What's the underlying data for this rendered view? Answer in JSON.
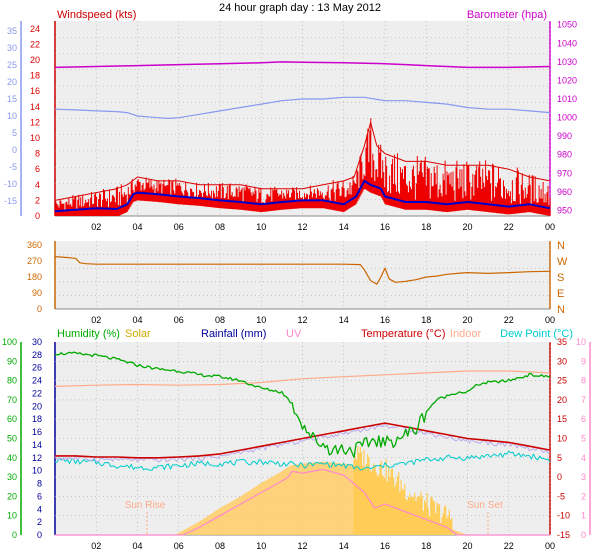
{
  "page": {
    "title": "24 hour graph day : 13 May 2012"
  },
  "colors": {
    "windspeed": "#dd0000",
    "gust": "#ee0000",
    "wind_avg": "#0000cc",
    "barometer": "#cc00cc",
    "wind_left_axis": "#8899ee",
    "direction": "#cc6600",
    "humidity": "#00aa00",
    "solar": "#ccaa00",
    "solar_fill": "#ffcc66",
    "rainfall": "#000099",
    "uv": "#ff88cc",
    "temperature": "#cc0000",
    "indoor": "#ffaa88",
    "dewpoint": "#00cccc",
    "panel_bg": "#eeeeee"
  },
  "chart_data": [
    {
      "type": "line",
      "panel": "wind-barometer",
      "legend": {
        "left": "Windspeed (kts)",
        "right": "Barometer (hpa)"
      },
      "x_ticks": [
        "02",
        "04",
        "06",
        "08",
        "10",
        "12",
        "14",
        "16",
        "18",
        "20",
        "22",
        "00"
      ],
      "x_range": [
        0,
        24
      ],
      "left_axis_outer_ticks": [
        "35",
        "30",
        "25",
        "20",
        "15",
        "10",
        "5",
        "0",
        "-5",
        "-10",
        "-15"
      ],
      "left_axis_ticks": [
        "24",
        "22",
        "20",
        "18",
        "16",
        "14",
        "12",
        "10",
        "8",
        "6",
        "4",
        "2",
        "0"
      ],
      "right_axis_ticks": [
        "1050",
        "1040",
        "1030",
        "1020",
        "1010",
        "1000",
        "990",
        "980",
        "970",
        "960",
        "950"
      ],
      "ylim_left": [
        0,
        25
      ],
      "ylim_right": [
        947,
        1052
      ],
      "series": [
        {
          "name": "Barometer",
          "axis": "right",
          "x": [
            0,
            2,
            4,
            6,
            8,
            10,
            11,
            12,
            14,
            16,
            17,
            18,
            19,
            20,
            22,
            24
          ],
          "y": [
            1027,
            1027.5,
            1028,
            1028.5,
            1029,
            1029.5,
            1030,
            1029.8,
            1029.5,
            1029,
            1028.5,
            1028,
            1027.5,
            1027,
            1027,
            1027.5
          ]
        },
        {
          "name": "",
          "axis": "left-outer",
          "x": [
            0,
            1,
            2,
            3,
            3.5,
            4,
            5,
            5.5,
            6,
            7,
            8,
            9,
            10,
            11,
            12,
            13,
            14,
            15,
            16,
            17,
            18,
            19,
            20,
            21,
            22,
            23,
            24
          ],
          "y": [
            12,
            11.8,
            11.5,
            11.3,
            11,
            10,
            9.5,
            9.3,
            9.5,
            10.5,
            11.5,
            12.5,
            13.5,
            14.5,
            15,
            15,
            15.5,
            15.5,
            14.5,
            14.5,
            14,
            13.5,
            12.5,
            12,
            12,
            11.5,
            11
          ]
        },
        {
          "name": "Windspeed",
          "axis": "left",
          "x": [
            0,
            1,
            2,
            3,
            3.5,
            4,
            5,
            6,
            7,
            8,
            9,
            10,
            11,
            12,
            13,
            14,
            14.5,
            15,
            15.3,
            15.6,
            16,
            17,
            18,
            19,
            20,
            21,
            22,
            23,
            24
          ],
          "y": [
            2,
            2.5,
            3,
            3.5,
            4,
            5,
            4.5,
            4.5,
            4,
            4,
            4,
            3.5,
            3.5,
            3.5,
            4,
            4.5,
            5,
            9,
            12,
            9,
            8,
            7,
            7,
            6.5,
            6.5,
            6.5,
            6,
            5,
            4.5
          ]
        },
        {
          "name": "",
          "axis": "left",
          "x": [
            0,
            1,
            2,
            3,
            3.5,
            3.8,
            4,
            5,
            6,
            7,
            8,
            9,
            10,
            11,
            12,
            13,
            14,
            14.6,
            15,
            15.3,
            15.8,
            16,
            17,
            18,
            19,
            20,
            21,
            22,
            23,
            24
          ],
          "y": [
            0.6,
            0.8,
            1,
            0.9,
            1.5,
            2.8,
            3,
            2.8,
            2.5,
            2.3,
            2,
            1.8,
            1.5,
            1.8,
            2,
            2,
            1.5,
            2.5,
            4.5,
            4,
            3.5,
            2.5,
            1.8,
            1.8,
            1.5,
            1.8,
            1.5,
            1.2,
            1.5,
            1
          ]
        }
      ]
    },
    {
      "type": "line",
      "panel": "wind-direction",
      "left_axis_ticks": [
        "360",
        "270",
        "180",
        "90",
        "0"
      ],
      "right_axis_ticks": [
        "N",
        "W",
        "S",
        "E",
        "N"
      ],
      "ylim": [
        0,
        360
      ],
      "series": [
        {
          "name": "",
          "x": [
            0,
            0.5,
            1,
            1.2,
            1.5,
            2,
            4,
            6,
            8,
            10,
            12,
            14,
            14.8,
            15,
            15.3,
            15.6,
            15.8,
            16,
            16.2,
            16.5,
            17,
            17.5,
            18,
            18.5,
            19,
            19.5,
            20,
            21,
            22,
            23,
            24
          ],
          "y": [
            295,
            290,
            285,
            260,
            255,
            252,
            252,
            252,
            252,
            252,
            252,
            252,
            250,
            220,
            160,
            140,
            180,
            230,
            170,
            150,
            155,
            165,
            180,
            185,
            195,
            200,
            205,
            200,
            205,
            210,
            212
          ]
        }
      ]
    },
    {
      "type": "line",
      "panel": "temperature-humidity",
      "legend": [
        "Humidity (%)",
        "Solar",
        "Rainfall (mm)",
        "UV",
        "Temperature (°C)",
        "Indoor",
        "Dew Point (°C)"
      ],
      "annotations": [
        "Sun Rise",
        "Sun Set"
      ],
      "left_axis_humidity_ticks": [
        "100",
        "90",
        "80",
        "70",
        "60",
        "50",
        "40",
        "30",
        "20",
        "10",
        "0"
      ],
      "left_axis_temp_ticks": [
        "30",
        "28",
        "26",
        "24",
        "22",
        "20",
        "18",
        "16",
        "14",
        "12",
        "10",
        "8",
        "6",
        "4",
        "2",
        "0"
      ],
      "right_axis_temp_ticks": [
        "35",
        "30",
        "25",
        "20",
        "15",
        "10",
        "5",
        "0",
        "-5",
        "-10",
        "-15"
      ],
      "right_axis_uv_ticks": [
        "10",
        "9",
        "8",
        "7",
        "6",
        "5",
        "4",
        "3",
        "2",
        "1",
        "0"
      ],
      "ylim_temperature": [
        -15,
        35
      ],
      "ylim_humidity": [
        0,
        100
      ],
      "series": [
        {
          "name": "Humidity (%)",
          "axis": "humidity",
          "x": [
            0,
            1,
            2,
            3,
            4,
            5,
            6,
            7,
            8,
            9,
            10,
            11,
            11.5,
            12,
            12.5,
            13,
            13.5,
            14,
            14.5,
            15,
            15.5,
            16,
            16.5,
            17,
            17.5,
            18,
            18.5,
            19,
            19.5,
            20,
            20.5,
            21,
            22,
            23,
            24
          ],
          "y": [
            94,
            94,
            93,
            91,
            88,
            86,
            85,
            83,
            82,
            80,
            76,
            74,
            68,
            58,
            50,
            47,
            44,
            45,
            44,
            46,
            50,
            47,
            50,
            52,
            55,
            64,
            70,
            72,
            74,
            74,
            78,
            79,
            80,
            83,
            82
          ]
        },
        {
          "name": "Temperature (°C)",
          "axis": "temperature",
          "x": [
            0,
            1,
            2,
            3,
            4,
            5,
            6,
            7,
            8,
            9,
            10,
            11,
            12,
            13,
            14,
            15,
            16,
            17,
            18,
            19,
            20,
            21,
            22,
            23,
            24
          ],
          "y": [
            5.5,
            5.5,
            5.2,
            5.2,
            5,
            5,
            5.2,
            5.5,
            6,
            7,
            8,
            9,
            10,
            11,
            12,
            13,
            14,
            13,
            12,
            11,
            10,
            9.5,
            9,
            8,
            7
          ]
        },
        {
          "name": "Indoor",
          "axis": "temperature",
          "x": [
            0,
            2,
            4,
            6,
            8,
            10,
            12,
            14,
            16,
            18,
            20,
            22,
            24
          ],
          "y": [
            23.5,
            23.8,
            24,
            23.8,
            24,
            24.5,
            25.5,
            26,
            26.5,
            27,
            27.5,
            27.5,
            27
          ]
        },
        {
          "name": "Dew Point (°C)",
          "axis": "temperature",
          "x": [
            0,
            1,
            2,
            3,
            4,
            5,
            6,
            7,
            8,
            9,
            10,
            11,
            12,
            13,
            14,
            15,
            16,
            17,
            18,
            19,
            20,
            21,
            22,
            23,
            24
          ],
          "y": [
            4.5,
            4,
            3.8,
            3,
            2.5,
            2.5,
            3,
            3.5,
            3.5,
            3.8,
            4,
            3.5,
            3,
            3.5,
            3,
            2,
            3,
            3.5,
            4.5,
            5,
            5,
            5.5,
            6,
            5.5,
            4.5
          ]
        },
        {
          "name": "Solar",
          "axis": "temperature",
          "x": [
            0,
            5.8,
            6.5,
            7,
            8,
            9,
            10,
            11,
            11.4,
            12,
            13,
            14,
            14.5,
            15,
            16,
            17,
            18,
            19,
            20,
            21,
            24
          ],
          "y": [
            -15,
            -15,
            -13,
            -11.5,
            -8,
            -5,
            -1.5,
            1.5,
            3,
            3.5,
            4,
            3.5,
            3,
            2,
            -1,
            -6,
            -10,
            -13,
            -15,
            -15,
            -15
          ]
        },
        {
          "name": "UV",
          "axis": "temperature",
          "x": [
            0,
            6.2,
            7,
            8,
            9,
            10,
            11,
            11.3,
            11.5,
            12,
            13,
            14,
            15,
            15.5,
            16,
            17,
            18,
            19,
            19.5,
            24
          ],
          "y": [
            -15,
            -15,
            -13,
            -10,
            -7,
            -4,
            -1,
            0,
            1.5,
            1,
            2,
            0.5,
            -4,
            -8,
            -7,
            -9,
            -11,
            -13,
            -15,
            -15
          ]
        }
      ]
    }
  ]
}
